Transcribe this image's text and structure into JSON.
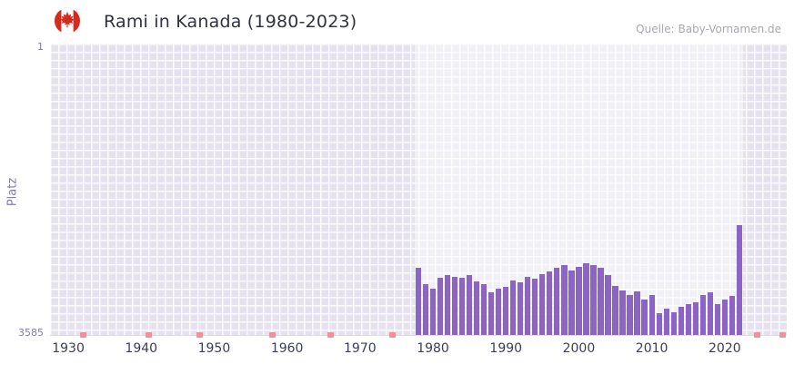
{
  "header": {
    "title": "Rami in Kanada (1980-2023)",
    "source": "Quelle: Baby-Vornamen.de",
    "flag_icon": "canada-flag-icon"
  },
  "chart_data": {
    "type": "bar",
    "title": "Rami in Kanada (1980-2023)",
    "xlabel": "",
    "ylabel": "Platz",
    "y_axis": {
      "min": 1,
      "max": 3585,
      "inverted": true,
      "top_label": "1",
      "bottom_label": "3585"
    },
    "x_domain": [
      1927.5,
      2028.5
    ],
    "x_ticks": [
      1930,
      1940,
      1950,
      1960,
      1970,
      1980,
      1990,
      2000,
      2010,
      2020
    ],
    "highlight_band": [
      1977.5,
      2022.5
    ],
    "years": [
      1978,
      1979,
      1980,
      1981,
      1982,
      1983,
      1984,
      1985,
      1986,
      1987,
      1988,
      1989,
      1990,
      1991,
      1992,
      1993,
      1994,
      1995,
      1996,
      1997,
      1998,
      1999,
      2000,
      2001,
      2002,
      2003,
      2004,
      2005,
      2006,
      2007,
      2008,
      2009,
      2010,
      2011,
      2012,
      2013,
      2014,
      2015,
      2016,
      2017,
      2018,
      2019,
      2020,
      2021,
      2022
    ],
    "values": [
      2760,
      2960,
      3010,
      2880,
      2850,
      2870,
      2880,
      2850,
      2930,
      2960,
      3060,
      3010,
      2990,
      2920,
      2940,
      2870,
      2890,
      2840,
      2800,
      2760,
      2730,
      2790,
      2750,
      2700,
      2730,
      2760,
      2850,
      2980,
      3040,
      3090,
      3050,
      3150,
      3090,
      3320,
      3260,
      3310,
      3240,
      3210,
      3180,
      3090,
      3060,
      3200,
      3150,
      3110,
      2230
    ],
    "no_data_marker_years": [
      1932,
      1941,
      1948,
      1958,
      1966,
      1974.5,
      2024.5,
      2028
    ],
    "grid": true,
    "legend_position": "none",
    "colors": {
      "bar": "#8c63c6",
      "plot_bg": "#e5e1ef",
      "band_bg": "rgba(255,255,255,0.5)",
      "grid": "#ffffff",
      "marker": "#f0909b",
      "axis_label": "#3a3f55",
      "y_label": "#8577b8",
      "title": "#30333f",
      "source": "#a8a8b0",
      "flag_red": "#d52b1e"
    }
  }
}
